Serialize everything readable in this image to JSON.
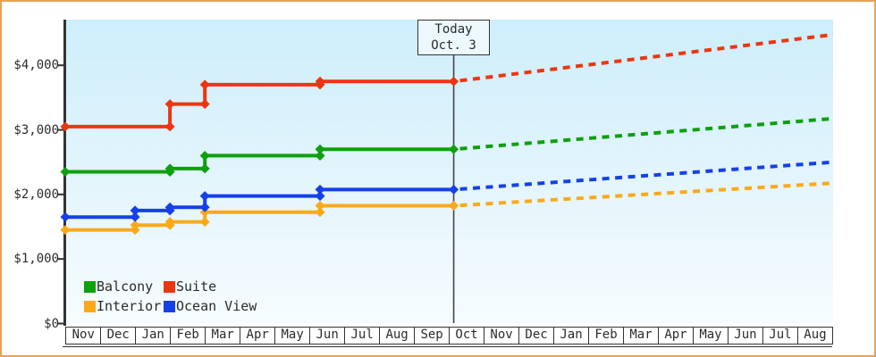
{
  "today_box": {
    "line1": "Today",
    "line2": "Oct. 3"
  },
  "legend": {
    "items": [
      {
        "label": "Balcony",
        "color": "#0ea00e"
      },
      {
        "label": "Suite",
        "color": "#ee3512"
      },
      {
        "label": "Interior",
        "color": "#fba919"
      },
      {
        "label": "Ocean View",
        "color": "#1540e8"
      }
    ]
  },
  "colors": {
    "frame_border": "#e8a254",
    "axis": "#333333",
    "text": "#2b2b2b",
    "plot_bg_top": "#cdeefb",
    "plot_bg_bottom": "#f6fcfe",
    "today_box_bg": "#ecf8fe"
  },
  "chart_data": {
    "type": "line",
    "subtype": "step-price-history-with-dashed-forecast",
    "title": "",
    "currency": "USD",
    "grid": false,
    "legend_position": "bottom-left",
    "y_axis": {
      "tick_values": [
        0,
        1000,
        2000,
        3000,
        4000
      ],
      "tick_labels": [
        "$0",
        "$1,000",
        "$2,000",
        "$3,000",
        "$4,000"
      ],
      "ylim": [
        0,
        4700
      ]
    },
    "x_axis": {
      "month_labels": [
        "Nov",
        "Dec",
        "Jan",
        "Feb",
        "Mar",
        "Apr",
        "May",
        "Jun",
        "Jul",
        "Aug",
        "Sep",
        "Oct",
        "Nov",
        "Dec",
        "Jan",
        "Feb",
        "Mar",
        "Apr",
        "May",
        "Jun",
        "Jul",
        "Aug"
      ],
      "months_total": 22
    },
    "today": {
      "label": "Today",
      "date_label": "Oct. 3",
      "month_offset": 11.13
    },
    "series": [
      {
        "name": "Interior",
        "color": "#fba919",
        "price_steps": [
          [
            0,
            1450
          ],
          [
            2,
            1525
          ],
          [
            3,
            1575
          ],
          [
            4,
            1725
          ],
          [
            7.3,
            1825
          ]
        ],
        "today_value": 1825,
        "projected_end_value": 2175
      },
      {
        "name": "Ocean View",
        "color": "#1540e8",
        "price_steps": [
          [
            0,
            1650
          ],
          [
            2,
            1750
          ],
          [
            3,
            1800
          ],
          [
            4,
            1975
          ],
          [
            7.3,
            2075
          ]
        ],
        "today_value": 2075,
        "projected_end_value": 2500
      },
      {
        "name": "Balcony",
        "color": "#0ea00e",
        "price_steps": [
          [
            0,
            2350
          ],
          [
            3,
            2400
          ],
          [
            4,
            2600
          ],
          [
            7.3,
            2700
          ]
        ],
        "today_value": 2700,
        "projected_end_value": 3175
      },
      {
        "name": "Suite",
        "color": "#ee3512",
        "price_steps": [
          [
            0,
            3050
          ],
          [
            3,
            3400
          ],
          [
            4,
            3700
          ],
          [
            7.3,
            3750
          ]
        ],
        "today_value": 3750,
        "projected_end_value": 4475
      }
    ]
  }
}
